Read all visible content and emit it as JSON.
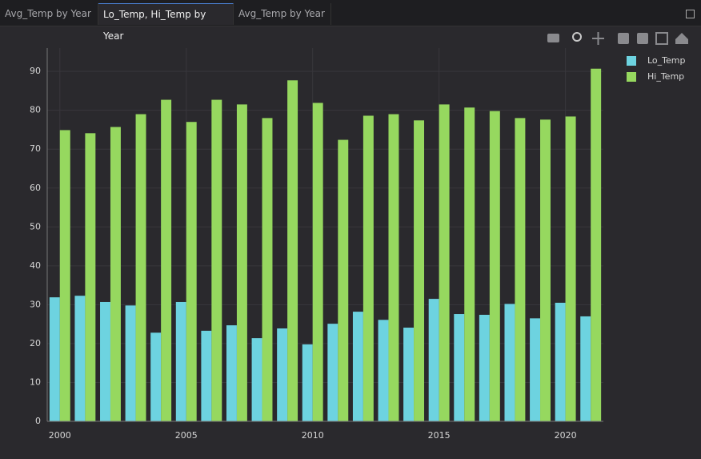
{
  "tabs": [
    "Avg_Temp by Year",
    "Lo_Temp, Hi_Temp by Year",
    "Avg_Temp by Year"
  ],
  "chart_data": {
    "type": "bar",
    "x": [
      2000,
      2001,
      2002,
      2003,
      2004,
      2005,
      2006,
      2007,
      2008,
      2009,
      2010,
      2011,
      2012,
      2013,
      2014,
      2015,
      2016,
      2017,
      2018,
      2019,
      2020,
      2021
    ],
    "series": [
      {
        "name": "Lo_Temp",
        "color": "#6dd3e0",
        "values": [
          31.9,
          32.3,
          30.7,
          29.8,
          22.8,
          30.7,
          23.3,
          24.7,
          21.4,
          23.9,
          19.8,
          25.1,
          28.2,
          26.1,
          24.1,
          31.5,
          27.6,
          27.4,
          30.2,
          26.5,
          30.5,
          27.0
        ]
      },
      {
        "name": "Hi_Temp",
        "color": "#96d85f",
        "values": [
          74.9,
          74.1,
          75.7,
          79.0,
          82.7,
          77.0,
          82.7,
          81.5,
          78.0,
          87.7,
          81.9,
          72.4,
          78.6,
          79.0,
          77.4,
          81.5,
          80.7,
          79.8,
          78.0,
          77.6,
          78.4,
          90.7
        ]
      }
    ],
    "xlim": [
      1999.5,
      2021.5
    ],
    "xticks": [
      2000,
      2005,
      2010,
      2015,
      2020
    ],
    "ylim": [
      0,
      96
    ],
    "yticks": [
      0,
      10,
      20,
      30,
      40,
      50,
      60,
      70,
      80,
      90
    ],
    "grid": true
  }
}
